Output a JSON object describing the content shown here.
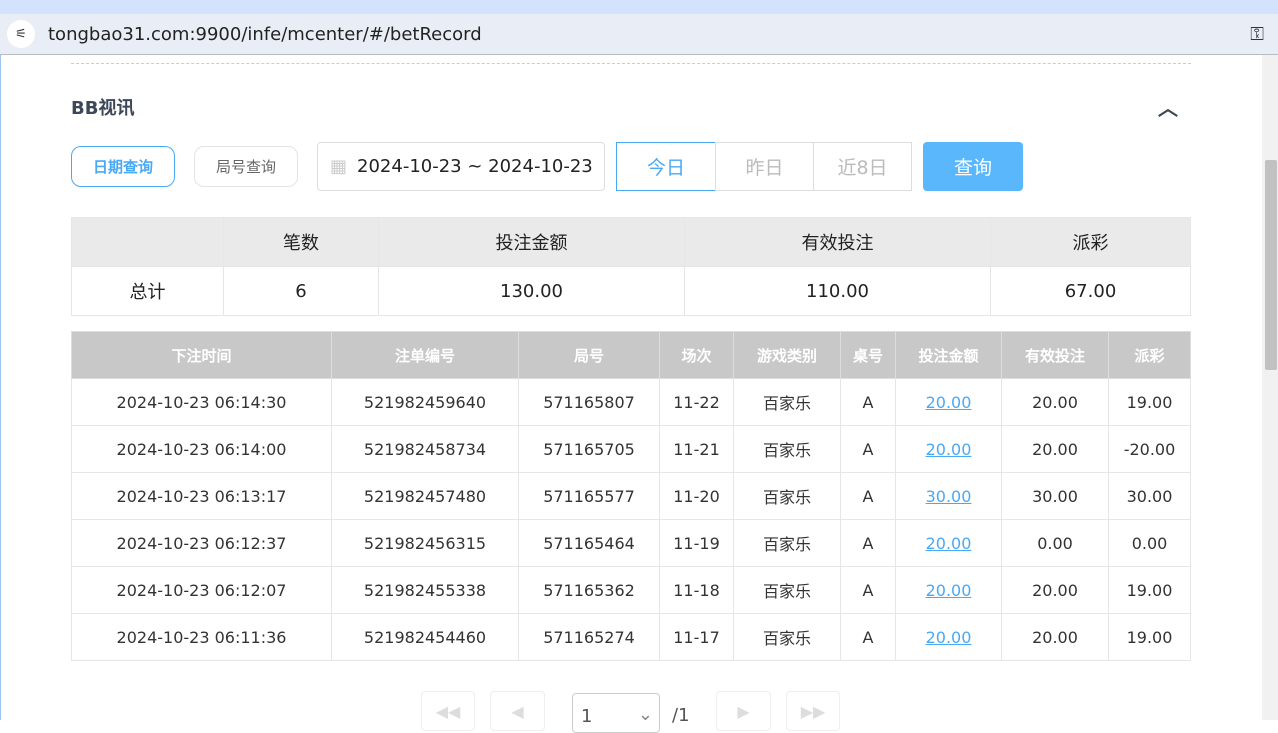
{
  "browser": {
    "url": "tongbao31.com:9900/infe/mcenter/#/betRecord"
  },
  "section": {
    "title": "BB视讯"
  },
  "filters": {
    "date_query": "日期查询",
    "round_query": "局号查询",
    "date_range": "2024-10-23 ~ 2024-10-23",
    "today": "今日",
    "yesterday": "昨日",
    "last8": "近8日",
    "query": "查询",
    "active_tab": "今日"
  },
  "summary": {
    "headers": [
      "",
      "笔数",
      "投注金额",
      "有效投注",
      "派彩"
    ],
    "row": [
      "总计",
      "6",
      "130.00",
      "110.00",
      "67.00"
    ]
  },
  "records": {
    "headers": [
      "下注时间",
      "注单编号",
      "局号",
      "场次",
      "游戏类别",
      "桌号",
      "投注金额",
      "有效投注",
      "派彩"
    ],
    "rows": [
      [
        "2024-10-23 06:14:30",
        "521982459640",
        "571165807",
        "11-22",
        "百家乐",
        "A",
        "20.00",
        "20.00",
        "19.00"
      ],
      [
        "2024-10-23 06:14:00",
        "521982458734",
        "571165705",
        "11-21",
        "百家乐",
        "A",
        "20.00",
        "20.00",
        "-20.00"
      ],
      [
        "2024-10-23 06:13:17",
        "521982457480",
        "571165577",
        "11-20",
        "百家乐",
        "A",
        "30.00",
        "30.00",
        "30.00"
      ],
      [
        "2024-10-23 06:12:37",
        "521982456315",
        "571165464",
        "11-19",
        "百家乐",
        "A",
        "20.00",
        "0.00",
        "0.00"
      ],
      [
        "2024-10-23 06:12:07",
        "521982455338",
        "571165362",
        "11-18",
        "百家乐",
        "A",
        "20.00",
        "20.00",
        "19.00"
      ],
      [
        "2024-10-23 06:11:36",
        "521982454460",
        "571165274",
        "11-17",
        "百家乐",
        "A",
        "20.00",
        "20.00",
        "19.00"
      ]
    ]
  },
  "pagination": {
    "page": "1",
    "total": "/1"
  },
  "colors": {
    "accent": "#4aa9f5",
    "negative": "#f0475b",
    "button": "#5ab7fb"
  }
}
